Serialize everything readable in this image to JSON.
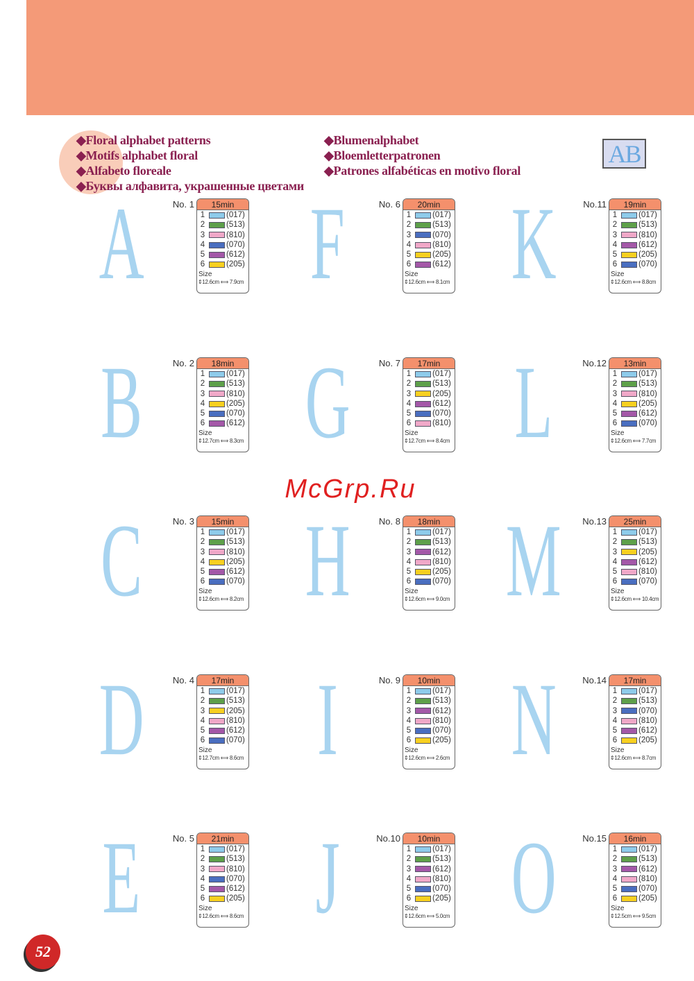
{
  "titles": {
    "left": [
      "◆Floral alphabet patterns",
      "◆Motifs alphabet floral",
      "◆Alfabeto floreale",
      "◆Буквы алфавита, украшенные цветами"
    ],
    "right": [
      "◆Blumenalphabet",
      "◆Bloemletterpatronen",
      "◆Patrones alfabéticas en motivo floral"
    ],
    "icon_text": "AB"
  },
  "size_label": "Size",
  "thread_colors": {
    "017": "#8ecbea",
    "513": "#5ea04a",
    "810": "#f0a8c8",
    "070": "#4a6ec0",
    "612": "#a458a8",
    "205": "#f8d020"
  },
  "designs": [
    {
      "no": "No. 1",
      "letter": "A",
      "time": "15min",
      "threads": [
        "(017)",
        "(513)",
        "(810)",
        "(070)",
        "(612)",
        "(205)"
      ],
      "size": "12.6cm ⟺ 7.9cm"
    },
    {
      "no": "No. 6",
      "letter": "F",
      "time": "20min",
      "threads": [
        "(017)",
        "(513)",
        "(070)",
        "(810)",
        "(205)",
        "(612)"
      ],
      "size": "12.6cm ⟺ 8.1cm"
    },
    {
      "no": "No.11",
      "letter": "K",
      "time": "19min",
      "threads": [
        "(017)",
        "(513)",
        "(810)",
        "(612)",
        "(205)",
        "(070)"
      ],
      "size": "12.6cm ⟺ 8.8cm"
    },
    {
      "no": "No. 2",
      "letter": "B",
      "time": "18min",
      "threads": [
        "(017)",
        "(513)",
        "(810)",
        "(205)",
        "(070)",
        "(612)"
      ],
      "size": "12.7cm ⟺ 8.3cm"
    },
    {
      "no": "No. 7",
      "letter": "G",
      "time": "17min",
      "threads": [
        "(017)",
        "(513)",
        "(205)",
        "(612)",
        "(070)",
        "(810)"
      ],
      "size": "12.7cm ⟺ 8.4cm"
    },
    {
      "no": "No.12",
      "letter": "L",
      "time": "13min",
      "threads": [
        "(017)",
        "(513)",
        "(810)",
        "(205)",
        "(612)",
        "(070)"
      ],
      "size": "12.6cm ⟺ 7.7cm"
    },
    {
      "no": "No. 3",
      "letter": "C",
      "time": "15min",
      "threads": [
        "(017)",
        "(513)",
        "(810)",
        "(205)",
        "(612)",
        "(070)"
      ],
      "size": "12.6cm ⟺ 8.2cm"
    },
    {
      "no": "No. 8",
      "letter": "H",
      "time": "18min",
      "threads": [
        "(017)",
        "(513)",
        "(612)",
        "(810)",
        "(205)",
        "(070)"
      ],
      "size": "12.6cm ⟺ 9.0cm"
    },
    {
      "no": "No.13",
      "letter": "M",
      "time": "25min",
      "threads": [
        "(017)",
        "(513)",
        "(205)",
        "(612)",
        "(810)",
        "(070)"
      ],
      "size": "12.6cm ⟺ 10.4cm"
    },
    {
      "no": "No. 4",
      "letter": "D",
      "time": "17min",
      "threads": [
        "(017)",
        "(513)",
        "(205)",
        "(810)",
        "(612)",
        "(070)"
      ],
      "size": "12.7cm ⟺ 8.6cm"
    },
    {
      "no": "No. 9",
      "letter": "I",
      "time": "10min",
      "threads": [
        "(017)",
        "(513)",
        "(612)",
        "(810)",
        "(070)",
        "(205)"
      ],
      "size": "12.6cm ⟺ 2.6cm"
    },
    {
      "no": "No.14",
      "letter": "N",
      "time": "17min",
      "threads": [
        "(017)",
        "(513)",
        "(070)",
        "(810)",
        "(612)",
        "(205)"
      ],
      "size": "12.6cm ⟺ 8.7cm"
    },
    {
      "no": "No. 5",
      "letter": "E",
      "time": "21min",
      "threads": [
        "(017)",
        "(513)",
        "(810)",
        "(070)",
        "(612)",
        "(205)"
      ],
      "size": "12.6cm ⟺ 8.6cm"
    },
    {
      "no": "No.10",
      "letter": "J",
      "time": "10min",
      "threads": [
        "(017)",
        "(513)",
        "(612)",
        "(810)",
        "(070)",
        "(205)"
      ],
      "size": "12.6cm ⟺ 5.0cm"
    },
    {
      "no": "No.15",
      "letter": "O",
      "time": "16min",
      "threads": [
        "(017)",
        "(513)",
        "(612)",
        "(810)",
        "(070)",
        "(205)"
      ],
      "size": "12.5cm ⟺ 9.5cm"
    }
  ],
  "watermark": "McGrp.Ru",
  "page_number": "52"
}
